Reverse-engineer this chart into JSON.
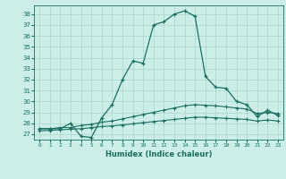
{
  "xlabel": "Humidex (Indice chaleur)",
  "bg_color": "#cceee8",
  "grid_color": "#aad4cc",
  "line_color": "#1a6e62",
  "xlim": [
    -0.5,
    23.5
  ],
  "ylim": [
    26.5,
    38.8
  ],
  "xticks": [
    0,
    1,
    2,
    3,
    4,
    5,
    6,
    7,
    8,
    9,
    10,
    11,
    12,
    13,
    14,
    15,
    16,
    17,
    18,
    19,
    20,
    21,
    22,
    23
  ],
  "yticks": [
    27,
    28,
    29,
    30,
    31,
    32,
    33,
    34,
    35,
    36,
    37,
    38
  ],
  "curve1_x": [
    0,
    1,
    2,
    3,
    4,
    5,
    6,
    7,
    8,
    9,
    10,
    11,
    12,
    13,
    14,
    15,
    16,
    17,
    18,
    19,
    20,
    21,
    22,
    23
  ],
  "curve1_y": [
    27.5,
    27.5,
    27.5,
    28.0,
    26.8,
    26.7,
    28.5,
    29.7,
    32.0,
    33.7,
    33.5,
    37.0,
    37.3,
    38.0,
    38.3,
    37.8,
    32.3,
    31.3,
    31.2,
    30.0,
    29.7,
    28.6,
    29.2,
    28.7
  ],
  "curve2_x": [
    0,
    1,
    2,
    3,
    4,
    5,
    6,
    7,
    8,
    9,
    10,
    11,
    12,
    13,
    14,
    15,
    16,
    17,
    18,
    19,
    20,
    21,
    22,
    23
  ],
  "curve2_y": [
    27.5,
    27.5,
    27.6,
    27.6,
    27.8,
    27.9,
    28.1,
    28.2,
    28.4,
    28.6,
    28.8,
    29.0,
    29.2,
    29.4,
    29.6,
    29.7,
    29.65,
    29.6,
    29.5,
    29.4,
    29.3,
    28.9,
    29.0,
    28.9
  ],
  "curve3_x": [
    0,
    1,
    2,
    3,
    4,
    5,
    6,
    7,
    8,
    9,
    10,
    11,
    12,
    13,
    14,
    15,
    16,
    17,
    18,
    19,
    20,
    21,
    22,
    23
  ],
  "curve3_y": [
    27.3,
    27.35,
    27.4,
    27.45,
    27.5,
    27.6,
    27.7,
    27.75,
    27.85,
    27.95,
    28.05,
    28.15,
    28.25,
    28.35,
    28.45,
    28.55,
    28.55,
    28.5,
    28.45,
    28.4,
    28.35,
    28.2,
    28.3,
    28.2
  ]
}
